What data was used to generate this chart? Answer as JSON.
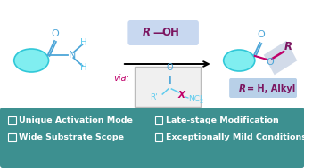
{
  "bg_color": "#ffffff",
  "teal_bg": "#3d9090",
  "teal_border": "#3d9090",
  "cyan_ellipse_face": "#80eef0",
  "cyan_ellipse_edge": "#30c8d8",
  "dark_purple": "#7b1560",
  "magenta": "#c0006a",
  "blue_text": "#4da6d8",
  "light_blue_text": "#60ccee",
  "r_oh_bg": "#c8d8f0",
  "shadow_box_color": "#c0cce0",
  "r_label_bg": "#b8d0e8",
  "int_box_bg": "#f0f0f0",
  "int_box_edge": "#bbbbbb",
  "bottom_items": [
    "Unique Activation Mode",
    "Wide Substrate Scope",
    "Late-stage Modification",
    "Exceptionally Mild Conditions"
  ],
  "white": "#ffffff",
  "black": "#000000"
}
